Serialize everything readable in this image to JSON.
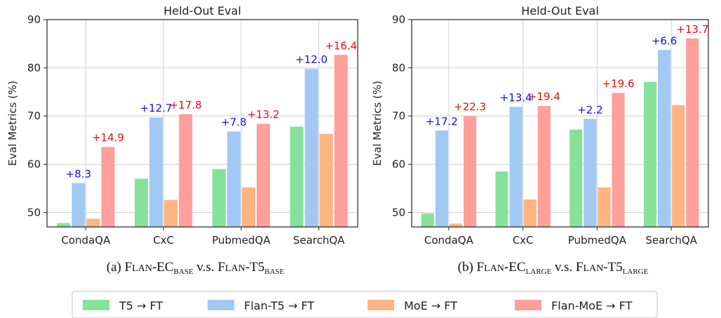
{
  "colors": {
    "T5": "#86e29b",
    "Flan-T5": "#a1c9f4",
    "MoE": "#ffb482",
    "Flan-MoE": "#ff9f9b",
    "ann_blue": "#1010e0",
    "ann_red": "#e01010"
  },
  "chart_data": [
    {
      "type": "bar",
      "title": "Held-Out Eval",
      "ylabel": "Eval Metrics (%)",
      "ylim": [
        47,
        90
      ],
      "yticks": [
        50,
        60,
        70,
        80,
        90
      ],
      "categories": [
        "CondaQA",
        "CxC",
        "PubmedQA",
        "SearchQA"
      ],
      "series": [
        {
          "name": "T5 → FT",
          "values": [
            47.8,
            57.0,
            59.0,
            67.8
          ]
        },
        {
          "name": "Flan-T5 → FT",
          "values": [
            56.1,
            69.7,
            66.8,
            79.8
          ]
        },
        {
          "name": "MoE → FT",
          "values": [
            48.7,
            52.6,
            55.2,
            66.3
          ]
        },
        {
          "name": "Flan-MoE → FT",
          "values": [
            63.6,
            70.4,
            68.4,
            82.7
          ]
        }
      ],
      "annotations": {
        "flan_t5": [
          "+8.3",
          "+12.7",
          "+7.8",
          "+12.0"
        ],
        "flan_moe": [
          "+14.9",
          "+17.8",
          "+13.2",
          "+16.4"
        ]
      },
      "caption": {
        "prefix": "(a) F",
        "a1": "LAN",
        "a2": "-EC",
        "sub1": "BASE",
        "mid": " v.s. F",
        "b1": "LAN",
        "b2": "-T5",
        "sub2": "BASE"
      }
    },
    {
      "type": "bar",
      "title": "Held-Out Eval",
      "ylabel": "Eval Metrics (%)",
      "ylim": [
        47,
        90
      ],
      "yticks": [
        50,
        60,
        70,
        80,
        90
      ],
      "categories": [
        "CondaQA",
        "CxC",
        "PubmedQA",
        "SearchQA"
      ],
      "series": [
        {
          "name": "T5 → FT",
          "values": [
            49.8,
            58.5,
            67.2,
            77.1
          ]
        },
        {
          "name": "Flan-T5 → FT",
          "values": [
            67.0,
            71.9,
            69.4,
            83.7
          ]
        },
        {
          "name": "MoE → FT",
          "values": [
            47.7,
            52.7,
            55.2,
            72.3
          ]
        },
        {
          "name": "Flan-MoE → FT",
          "values": [
            70.0,
            72.1,
            74.8,
            86.1
          ]
        }
      ],
      "annotations": {
        "flan_t5": [
          "+17.2",
          "+13.4",
          "+2.2",
          "+6.6"
        ],
        "flan_moe": [
          "+22.3",
          "+19.4",
          "+19.6",
          "+13.7"
        ]
      },
      "caption": {
        "prefix": "(b) F",
        "a1": "LAN",
        "a2": "-EC",
        "sub1": "LARGE",
        "mid": " v.s. F",
        "b1": "LAN",
        "b2": "-T5",
        "sub2": "LARGE"
      }
    }
  ],
  "legend": {
    "items": [
      "T5 → FT",
      "Flan-T5 → FT",
      "MoE → FT",
      "Flan-MoE → FT"
    ]
  }
}
